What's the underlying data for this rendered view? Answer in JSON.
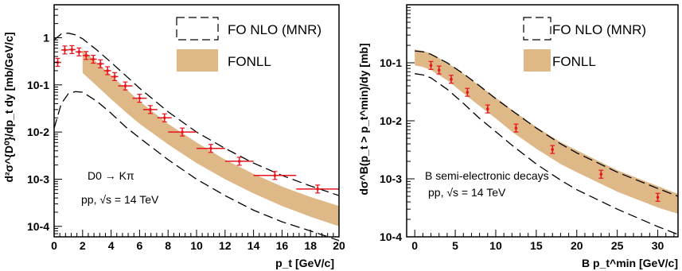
{
  "chart_data": [
    {
      "type": "line",
      "panel": "left",
      "xlabel": "p_t [GeV/c]",
      "ylabel": "d²σ^{D⁰}/dp_t dy [mb/GeV/c]",
      "xlim": [
        0,
        20
      ],
      "ylim": [
        6e-05,
        5
      ],
      "y_scale": "log",
      "x_ticks": [
        0,
        2,
        4,
        6,
        8,
        10,
        12,
        14,
        16,
        18,
        20
      ],
      "y_ticks": [
        {
          "value": 1,
          "label": "1"
        },
        {
          "value": 0.1,
          "label": "10-1"
        },
        {
          "value": 0.01,
          "label": "10-2"
        },
        {
          "value": 0.001,
          "label": "10-3"
        },
        {
          "value": 0.0001,
          "label": "10-4"
        }
      ],
      "legend": [
        "FO NLO (MNR)",
        "FONLL"
      ],
      "annotations": [
        "D0 → Kπ",
        "pp, √s = 14 TeV"
      ],
      "series": [
        {
          "name": "FO NLO (MNR)",
          "style": "dashed-upper",
          "x": [
            0,
            0.5,
            1,
            1.5,
            2,
            3,
            4,
            5,
            6,
            8,
            10,
            12,
            14,
            16,
            18,
            20
          ],
          "y": [
            0.9,
            1.2,
            1.25,
            1.15,
            0.95,
            0.55,
            0.3,
            0.16,
            0.085,
            0.027,
            0.01,
            0.0045,
            0.0022,
            0.0012,
            0.00072,
            0.00045
          ]
        },
        {
          "name": "FO NLO (MNR)",
          "style": "dashed-lower",
          "x": [
            0,
            0.5,
            1,
            1.5,
            2,
            3,
            4,
            5,
            6,
            8,
            10,
            12,
            14,
            16,
            18,
            20
          ],
          "y": [
            0.012,
            0.04,
            0.065,
            0.072,
            0.07,
            0.045,
            0.025,
            0.013,
            0.0075,
            0.0026,
            0.001,
            0.00045,
            0.00022,
            0.000125,
            8e-05,
            5e-05
          ]
        },
        {
          "name": "FONLL",
          "style": "band",
          "x": [
            2,
            3,
            4,
            5,
            6,
            8,
            10,
            12,
            14,
            16,
            18,
            20
          ],
          "y_low": [
            0.18,
            0.095,
            0.05,
            0.027,
            0.015,
            0.0055,
            0.0022,
            0.001,
            0.0005,
            0.00027,
            0.00016,
            0.0001
          ],
          "y_high": [
            0.55,
            0.3,
            0.16,
            0.085,
            0.045,
            0.015,
            0.006,
            0.0026,
            0.0013,
            0.0007,
            0.00042,
            0.00027
          ]
        },
        {
          "name": "data",
          "style": "points",
          "points": [
            {
              "x": 0.25,
              "y": 0.3,
              "xerr": 0.25
            },
            {
              "x": 0.75,
              "y": 0.55,
              "xerr": 0.25
            },
            {
              "x": 1.25,
              "y": 0.56,
              "xerr": 0.25
            },
            {
              "x": 1.75,
              "y": 0.5,
              "xerr": 0.25
            },
            {
              "x": 2.25,
              "y": 0.42,
              "xerr": 0.25
            },
            {
              "x": 2.75,
              "y": 0.35,
              "xerr": 0.25
            },
            {
              "x": 3.25,
              "y": 0.28,
              "xerr": 0.25
            },
            {
              "x": 3.75,
              "y": 0.2,
              "xerr": 0.25
            },
            {
              "x": 4.25,
              "y": 0.15,
              "xerr": 0.25
            },
            {
              "x": 5,
              "y": 0.095,
              "xerr": 0.5
            },
            {
              "x": 6,
              "y": 0.052,
              "xerr": 0.5
            },
            {
              "x": 6.75,
              "y": 0.03,
              "xerr": 0.5
            },
            {
              "x": 7.75,
              "y": 0.02,
              "xerr": 0.5
            },
            {
              "x": 9,
              "y": 0.01,
              "xerr": 1
            },
            {
              "x": 11,
              "y": 0.0045,
              "xerr": 1
            },
            {
              "x": 13,
              "y": 0.0024,
              "xerr": 1
            },
            {
              "x": 15.5,
              "y": 0.0012,
              "xerr": 1.5
            },
            {
              "x": 18.5,
              "y": 0.00062,
              "xerr": 1.5
            }
          ]
        }
      ]
    },
    {
      "type": "line",
      "panel": "right",
      "xlabel": "B p_t^min [GeV/c]",
      "ylabel": "dσ^B(p_t > p_t^min)/dy [mb]",
      "xlim": [
        -1,
        32.5
      ],
      "ylim": [
        0.0001,
        1
      ],
      "y_scale": "log",
      "x_ticks": [
        0,
        5,
        10,
        15,
        20,
        25,
        30
      ],
      "y_ticks": [
        {
          "value": 0.1,
          "label": "10-1"
        },
        {
          "value": 0.01,
          "label": "10-2"
        },
        {
          "value": 0.001,
          "label": "10-3"
        },
        {
          "value": 0.0001,
          "label": "10-4"
        }
      ],
      "legend": [
        "FO NLO (MNR)",
        "FONLL"
      ],
      "annotations": [
        "B semi-electronic decays",
        "pp, √s = 14 TeV"
      ],
      "series": [
        {
          "name": "FO NLO (MNR)",
          "style": "dashed-upper",
          "x": [
            0,
            1,
            2,
            4,
            6,
            8,
            10,
            12,
            15,
            18,
            20,
            25,
            30,
            32.5
          ],
          "y": [
            0.16,
            0.155,
            0.14,
            0.1,
            0.065,
            0.04,
            0.024,
            0.015,
            0.0075,
            0.004,
            0.0028,
            0.0013,
            0.00068,
            0.0005
          ]
        },
        {
          "name": "FO NLO (MNR)",
          "style": "dashed-lower",
          "x": [
            0,
            1,
            2,
            4,
            6,
            8,
            10,
            12,
            15,
            18,
            20,
            25,
            30,
            32.5
          ],
          "y": [
            0.065,
            0.062,
            0.055,
            0.035,
            0.02,
            0.011,
            0.0065,
            0.0038,
            0.0018,
            0.00095,
            0.00065,
            0.0003,
            0.00015,
            0.00011
          ]
        },
        {
          "name": "FONLL",
          "style": "band",
          "x": [
            0,
            1,
            2,
            4,
            6,
            8,
            10,
            12,
            15,
            18,
            20,
            25,
            30,
            32.5
          ],
          "y_low": [
            0.09,
            0.085,
            0.075,
            0.05,
            0.03,
            0.018,
            0.011,
            0.0065,
            0.0033,
            0.0018,
            0.0013,
            0.0006,
            0.00032,
            0.00025
          ],
          "y_high": [
            0.17,
            0.16,
            0.145,
            0.1,
            0.065,
            0.04,
            0.025,
            0.0155,
            0.0078,
            0.0043,
            0.0031,
            0.0014,
            0.00075,
            0.00055
          ]
        },
        {
          "name": "data",
          "style": "points",
          "points": [
            {
              "x": 2,
              "y": 0.09
            },
            {
              "x": 3,
              "y": 0.075
            },
            {
              "x": 4.5,
              "y": 0.052
            },
            {
              "x": 6.5,
              "y": 0.031
            },
            {
              "x": 9,
              "y": 0.016
            },
            {
              "x": 12.5,
              "y": 0.0075
            },
            {
              "x": 17,
              "y": 0.0032
            },
            {
              "x": 23,
              "y": 0.0012
            },
            {
              "x": 30,
              "y": 0.00048
            }
          ]
        }
      ]
    }
  ],
  "colors": {
    "band": "#dfb887",
    "data": "#e8141e",
    "axis": "#000000",
    "curve": "#000000"
  }
}
